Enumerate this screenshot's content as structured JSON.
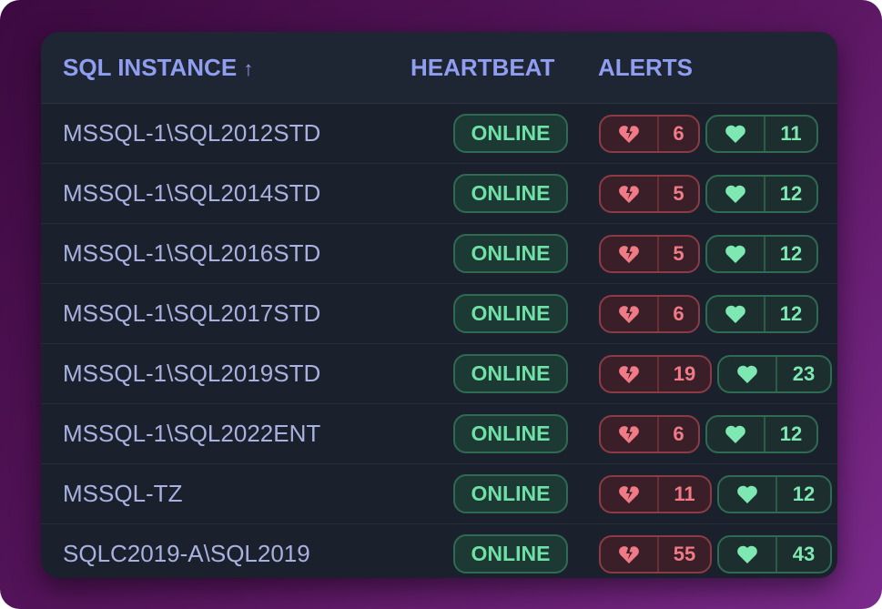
{
  "header": {
    "instance": "SQL INSTANCE",
    "sort_icon": "arrow-up-icon",
    "sort_glyph": "↑",
    "heartbeat": "HEARTBEAT",
    "alerts": "ALERTS"
  },
  "colors": {
    "accent": "#8f9ef0",
    "online": "#6fe0a6",
    "broken": "#f07a85",
    "healthy": "#7ee8b2"
  },
  "rows": [
    {
      "name": "MSSQL-1\\SQL2012STD",
      "status": "ONLINE",
      "broken": "6",
      "healthy": "11"
    },
    {
      "name": "MSSQL-1\\SQL2014STD",
      "status": "ONLINE",
      "broken": "5",
      "healthy": "12"
    },
    {
      "name": "MSSQL-1\\SQL2016STD",
      "status": "ONLINE",
      "broken": "5",
      "healthy": "12"
    },
    {
      "name": "MSSQL-1\\SQL2017STD",
      "status": "ONLINE",
      "broken": "6",
      "healthy": "12"
    },
    {
      "name": "MSSQL-1\\SQL2019STD",
      "status": "ONLINE",
      "broken": "19",
      "healthy": "23"
    },
    {
      "name": "MSSQL-1\\SQL2022ENT",
      "status": "ONLINE",
      "broken": "6",
      "healthy": "12"
    },
    {
      "name": "MSSQL-TZ",
      "status": "ONLINE",
      "broken": "11",
      "healthy": "12"
    },
    {
      "name": "SQLC2019-A\\SQL2019",
      "status": "ONLINE",
      "broken": "55",
      "healthy": "43"
    }
  ]
}
